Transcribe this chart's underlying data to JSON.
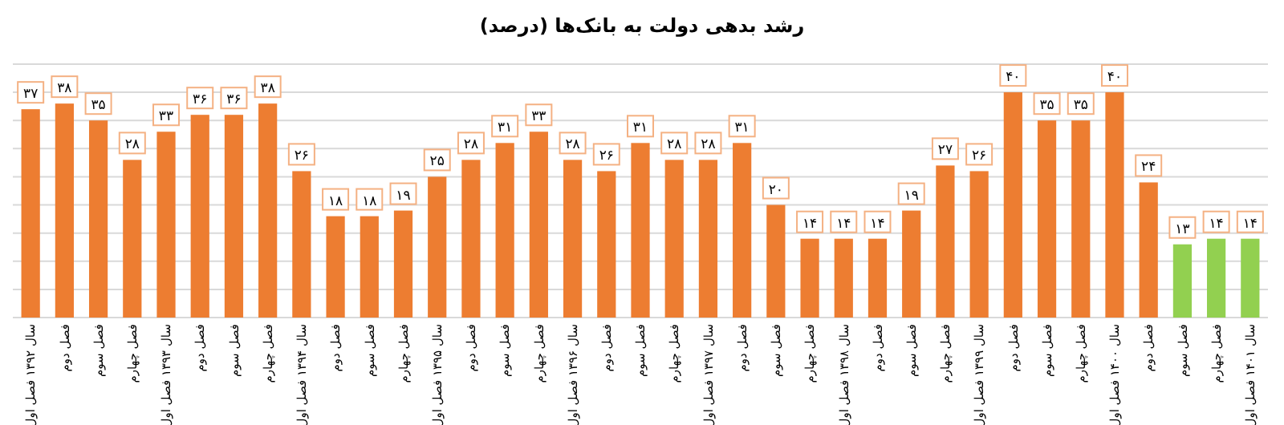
{
  "chart_data": {
    "type": "bar",
    "title": "رشد بدهی دولت به بانک‌ها (درصد)",
    "categories": [
      "سال ۱۳۹۲ فصل اول",
      "فصل دوم",
      "فصل سوم",
      "فصل چهارم",
      "سال ۱۳۹۳ فصل اول",
      "فصل دوم",
      "فصل سوم",
      "فصل چهارم",
      "سال ۱۳۹۴ فصل اول",
      "فصل دوم",
      "فصل سوم",
      "فصل چهارم",
      "سال ۱۳۹۵ فصل اول",
      "فصل دوم",
      "فصل سوم",
      "فصل چهارم",
      "سال ۱۳۹۶ فصل اول",
      "فصل دوم",
      "فصل سوم",
      "فصل چهارم",
      "سال ۱۳۹۷ فصل اول",
      "فصل دوم",
      "فصل سوم",
      "فصل چهارم",
      "سال ۱۳۹۸ فصل اول",
      "فصل دوم",
      "فصل سوم",
      "فصل چهارم",
      "سال ۱۳۹۹ فصل اول",
      "فصل دوم",
      "فصل سوم",
      "فصل چهارم",
      "سال ۱۴۰۰ فصل اول",
      "فصل دوم",
      "فصل سوم",
      "فصل چهارم",
      "سال ۱۴۰۱ فصل اول"
    ],
    "values": [
      37,
      38,
      35,
      28,
      33,
      36,
      36,
      38,
      26,
      18,
      18,
      19,
      25,
      28,
      31,
      33,
      28,
      26,
      31,
      28,
      28,
      31,
      20,
      14,
      14,
      14,
      19,
      27,
      26,
      40,
      35,
      35,
      40,
      24,
      13,
      14,
      14
    ],
    "value_labels": [
      "۳۷",
      "۳۸",
      "۳۵",
      "۲۸",
      "۳۳",
      "۳۶",
      "۳۶",
      "۳۸",
      "۲۶",
      "۱۸",
      "۱۸",
      "۱۹",
      "۲۵",
      "۲۸",
      "۳۱",
      "۳۳",
      "۲۸",
      "۲۶",
      "۳۱",
      "۲۸",
      "۲۸",
      "۳۱",
      "۲۰",
      "۱۴",
      "۱۴",
      "۱۴",
      "۱۹",
      "۲۷",
      "۲۶",
      "۴۰",
      "۳۵",
      "۳۵",
      "۴۰",
      "۲۴",
      "۱۳",
      "۱۴",
      "۱۴"
    ],
    "colors": [
      "#ed7d31",
      "#ed7d31",
      "#ed7d31",
      "#ed7d31",
      "#ed7d31",
      "#ed7d31",
      "#ed7d31",
      "#ed7d31",
      "#ed7d31",
      "#ed7d31",
      "#ed7d31",
      "#ed7d31",
      "#ed7d31",
      "#ed7d31",
      "#ed7d31",
      "#ed7d31",
      "#ed7d31",
      "#ed7d31",
      "#ed7d31",
      "#ed7d31",
      "#ed7d31",
      "#ed7d31",
      "#ed7d31",
      "#ed7d31",
      "#ed7d31",
      "#ed7d31",
      "#ed7d31",
      "#ed7d31",
      "#ed7d31",
      "#ed7d31",
      "#ed7d31",
      "#ed7d31",
      "#ed7d31",
      "#ed7d31",
      "#92d050",
      "#92d050",
      "#92d050"
    ],
    "ylim": [
      0,
      45
    ],
    "yticks": [
      {
        "value": 0,
        "label": null
      },
      {
        "value": 5,
        "label": null
      },
      {
        "value": 10,
        "label": null
      },
      {
        "value": 15,
        "label": null
      },
      {
        "value": 20,
        "label": null
      },
      {
        "value": 25,
        "label": null
      },
      {
        "value": 30,
        "label": null
      },
      {
        "value": 35,
        "label": null
      },
      {
        "value": 40,
        "label": null
      },
      {
        "value": 45,
        "label": null
      }
    ],
    "grid": "y",
    "tick_labels": "x"
  }
}
